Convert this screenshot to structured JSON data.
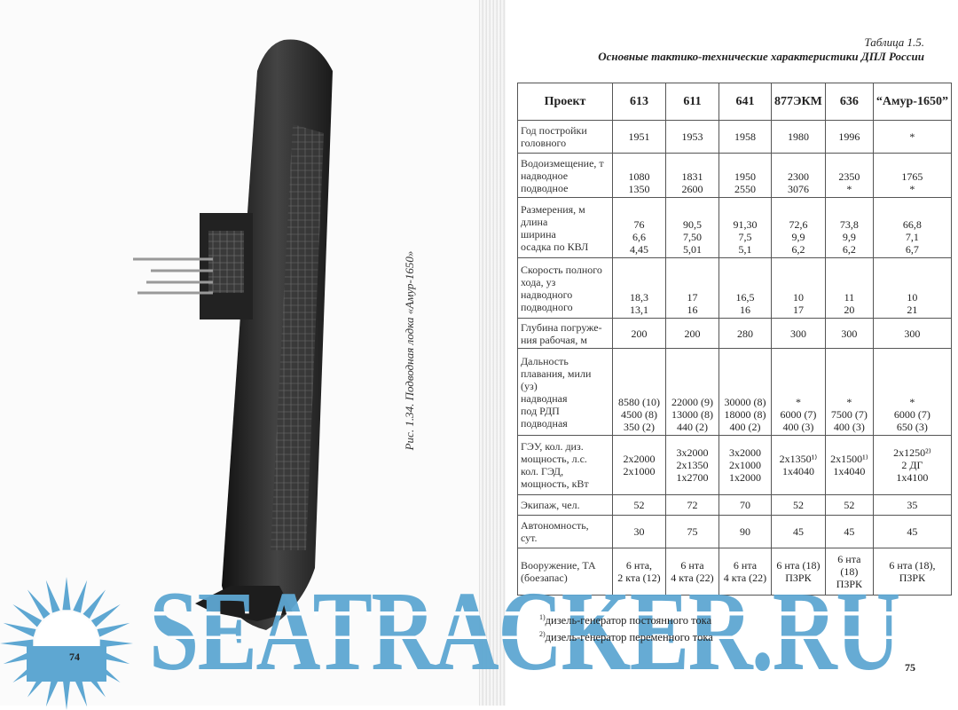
{
  "left_page": {
    "caption": "Рис. 1.34. Подводная лодка «Амур-1650»",
    "page_number": "74"
  },
  "right_page": {
    "table_label": "Таблица 1.5.",
    "table_title": "Основные тактико-технические характеристики ДПЛ России",
    "page_number": "75",
    "table": {
      "headers": [
        "Проект",
        "613",
        "611",
        "641",
        "877ЭКМ",
        "636",
        "“Амур-1650”"
      ],
      "rows": [
        {
          "label": "Год постройки\nголовного",
          "cells": [
            "1951",
            "1953",
            "1958",
            "1980",
            "1996",
            "*"
          ]
        },
        {
          "label": "Водоизмещение, т\nнадводное\nподводное",
          "cells": [
            "1080\n1350",
            "1831\n2600",
            "1950\n2550",
            "2300\n3076",
            "2350\n*",
            "1765\n*"
          ]
        },
        {
          "label": "Размерения, м\nдлина\nширина\nосадка по КВЛ",
          "cells": [
            "76\n6,6\n4,45",
            "90,5\n7,50\n5,01",
            "91,30\n7,5\n5,1",
            "72,6\n9,9\n6,2",
            "73,8\n9,9\n6,2",
            "66,8\n7,1\n6,7"
          ]
        },
        {
          "label": "Скорость полного\nхода, уз\nнадводного\nподводного",
          "cells": [
            "18,3\n13,1",
            "17\n16",
            "16,5\n16",
            "10\n17",
            "11\n20",
            "10\n21"
          ]
        },
        {
          "label": "Глубина погруже-\nния рабочая, м",
          "cells": [
            "200",
            "200",
            "280",
            "300",
            "300",
            "300"
          ]
        },
        {
          "label": "Дальность\nплавания, мили\n(уз)\nнадводная\nпод РДП\nподводная",
          "cells": [
            "8580 (10)\n4500 (8)\n350 (2)",
            "22000 (9)\n13000 (8)\n440 (2)",
            "30000 (8)\n18000 (8)\n400 (2)",
            "*\n6000 (7)\n400 (3)",
            "*\n7500 (7)\n400 (3)",
            "*\n6000 (7)\n650 (3)"
          ]
        },
        {
          "label": "ГЭУ, кол. диз.\nмощность, л.с.\nкол. ГЭД,\nмощность, кВт",
          "cells": [
            "2x2000\n2x1000",
            "3x2000\n2x1350\n1x2700",
            "3x2000\n2x1000\n1x2000",
            "2x1350¹⁾\n1x4040",
            "2x1500¹⁾\n1x4040",
            "2x1250²⁾\n2 ДГ\n1x4100"
          ]
        },
        {
          "label": "Экипаж, чел.",
          "cells": [
            "52",
            "72",
            "70",
            "52",
            "52",
            "35"
          ]
        },
        {
          "label": "Автономность,\nсут.",
          "cells": [
            "30",
            "75",
            "90",
            "45",
            "45",
            "45"
          ]
        },
        {
          "label": "Вооружение, ТА\n(боезапас)",
          "cells": [
            "6 нта,\n2 кта (12)",
            "6 нта\n4 кта (22)",
            "6 нта\n4 кта (22)",
            "6 нта (18)\nПЗРК",
            "6 нта\n(18)\nПЗРК",
            "6 нта (18),\nПЗРК"
          ]
        }
      ]
    },
    "footnotes": [
      {
        "mark": "1)",
        "text": "дизель-генератор постоянного тока"
      },
      {
        "mark": "2)",
        "text": "дизель-генератор переменного тока"
      }
    ]
  },
  "watermark": {
    "text": "SEATRACKER.RU",
    "color": "#5ea7d2",
    "icon": "sun-logo-icon"
  }
}
